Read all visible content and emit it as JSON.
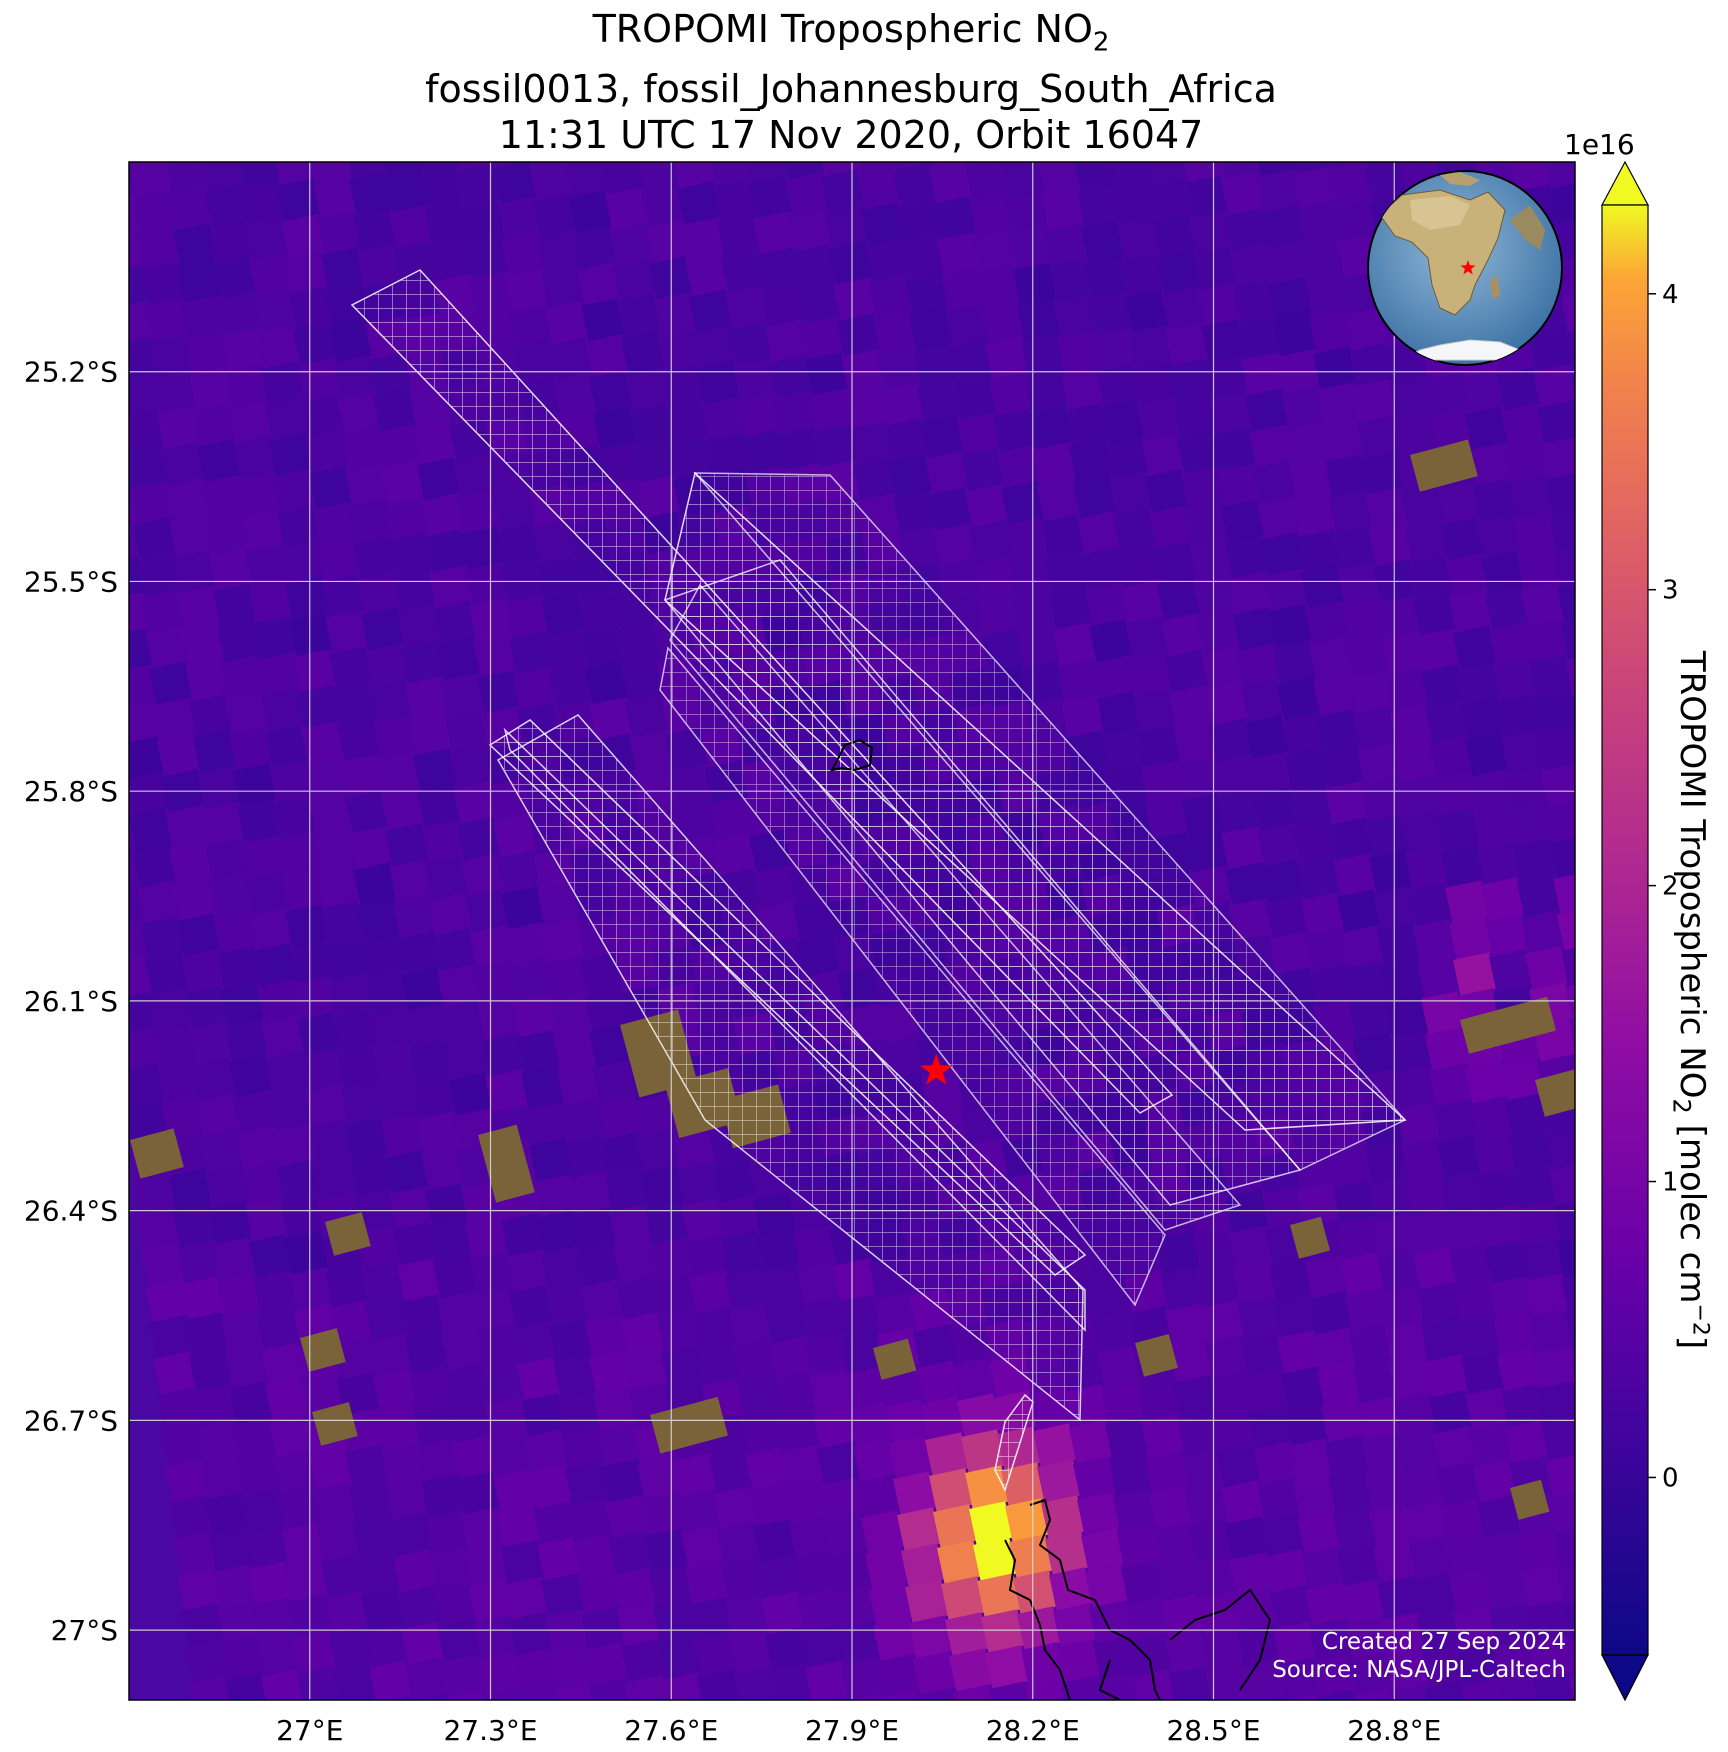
{
  "title": {
    "line1_prefix": "TROPOMI Tropospheric NO",
    "line1_sub": "2",
    "line2": "fossil0013, fossil_Johannesburg_South_Africa",
    "line3": "11:31 UTC 17 Nov 2020, Orbit 16047"
  },
  "colorbar": {
    "label_prefix": "TROPOMI Tropospheric NO",
    "label_sub": "2",
    "label_mid": " [molec cm",
    "label_sup": "−2",
    "label_suffix": "]",
    "exponent": "1e16",
    "ticks": [
      "0",
      "1",
      "2",
      "3",
      "4"
    ],
    "range": [
      -0.6,
      4.3
    ],
    "extend": "both",
    "colormap": "plasma"
  },
  "credit": {
    "created": "Created 27 Sep 2024",
    "source": "Source: NASA/JPL-Caltech"
  },
  "chart_data": {
    "type": "heatmap",
    "projection": "lat-lon map",
    "lon_range": [
      26.7,
      29.1
    ],
    "lat_range": [
      -27.1,
      -24.9
    ],
    "lat_ticks": [
      "25.2°S",
      "25.5°S",
      "25.8°S",
      "26.1°S",
      "26.4°S",
      "26.7°S",
      "27°S"
    ],
    "lon_ticks": [
      "27°E",
      "27.3°E",
      "27.6°E",
      "27.9°E",
      "28.2°E",
      "28.5°E",
      "28.8°E"
    ],
    "grid": true,
    "target_marker": {
      "symbol": "star",
      "color": "#ff0000",
      "lat": -26.2,
      "lon": 28.04
    },
    "no2_hotspot": {
      "lat": -26.85,
      "lon": 28.1,
      "value_1e16": 4.2
    },
    "background_level_1e16": 0.3,
    "inset_globe": "Africa view with red star at Johannesburg"
  }
}
